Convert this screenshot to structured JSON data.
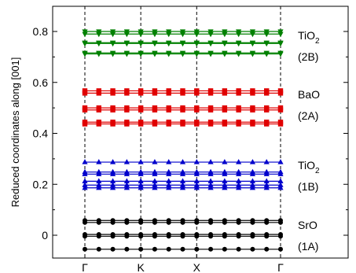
{
  "chart_data": {
    "type": "line",
    "title": "",
    "xlabel": "",
    "ylabel": "Reduced coordinates along [001]",
    "ylim": [
      -0.08,
      0.85
    ],
    "yticks": [
      0,
      0.2,
      0.4,
      0.6,
      0.8
    ],
    "ytick_labels": [
      "0",
      "0.2",
      "0.4",
      "0.6",
      "0.8"
    ],
    "xticks": [
      "Γ",
      "K",
      "X",
      "Γ"
    ],
    "x_range": [
      0,
      9
    ],
    "x_tick_positions": [
      0,
      2,
      4,
      7
    ],
    "grid": "dashed vertical lines at high-symmetry points",
    "legend": "none",
    "annotations": [
      {
        "label": "TiO",
        "sub": "2",
        "tag": "(2B)"
      },
      {
        "label": "BaO",
        "sub": "",
        "tag": "(2A)"
      },
      {
        "label": "TiO",
        "sub": "2",
        "tag": "(1B)"
      },
      {
        "label": "SrO",
        "sub": "",
        "tag": "(1A)"
      }
    ],
    "groups": [
      {
        "layer": "TiO2 (2B)",
        "color": "#008000",
        "marker": "triangle-down",
        "values": [
          0.8,
          0.79,
          0.756,
          0.753,
          0.716,
          0.712
        ]
      },
      {
        "layer": "BaO (2A)",
        "color": "#e00000",
        "marker": "square",
        "values": [
          0.567,
          0.558,
          0.5,
          0.492,
          0.444,
          0.437
        ]
      },
      {
        "layer": "TiO2 (1B)",
        "color": "#0000cc",
        "marker": "triangle-up",
        "values": [
          0.287,
          0.248,
          0.24,
          0.212,
          0.197,
          0.186
        ]
      },
      {
        "layer": "SrO (1A)",
        "color": "#000000",
        "marker": "circle",
        "values": [
          0.058,
          0.05,
          0.003,
          -0.004,
          -0.055
        ]
      }
    ],
    "x_points": [
      0,
      0.5,
      1,
      1.5,
      2,
      2.5,
      3,
      3.5,
      4,
      4.5,
      5,
      5.5,
      6,
      6.5,
      7
    ]
  }
}
